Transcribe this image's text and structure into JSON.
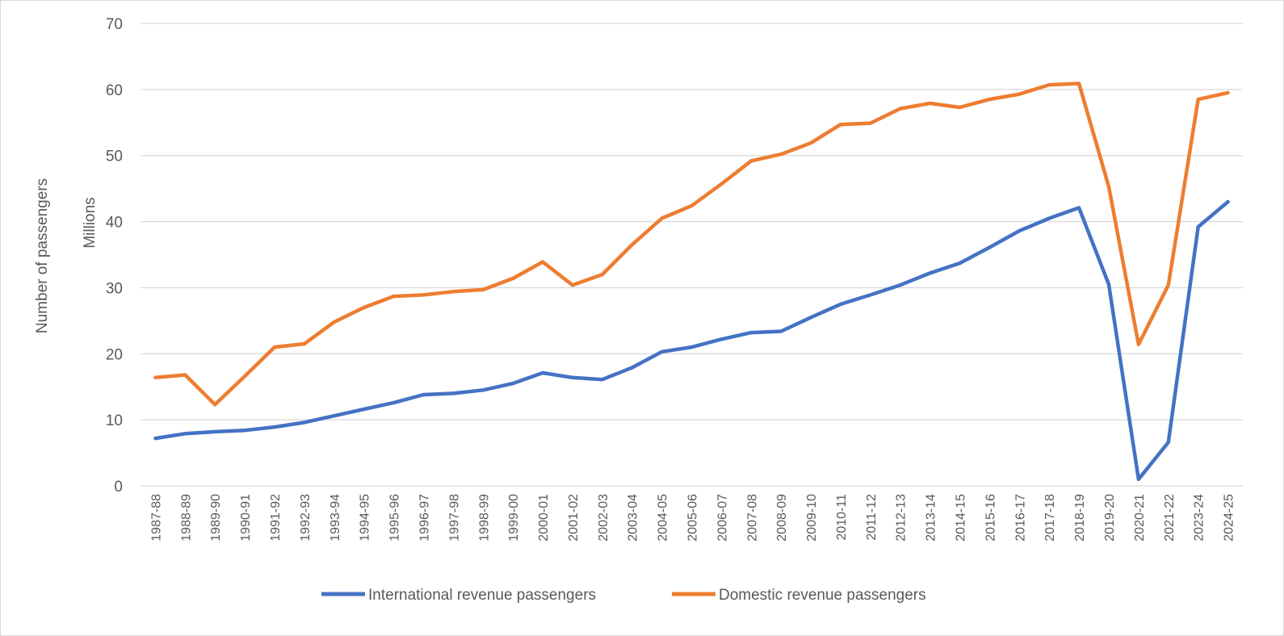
{
  "chart_data": {
    "type": "line",
    "title": "",
    "ylabel": "Number of passengers",
    "yunit_label": "Millions",
    "xlabel": "",
    "ylim": [
      0,
      70
    ],
    "yticks": [
      0,
      10,
      20,
      30,
      40,
      50,
      60,
      70
    ],
    "grid": true,
    "legend_position": "bottom",
    "categories": [
      "1987-88",
      "1988-89",
      "1989-90",
      "1990-91",
      "1991-92",
      "1992-93",
      "1993-94",
      "1994-95",
      "1995-96",
      "1996-97",
      "1997-98",
      "1998-99",
      "1999-00",
      "2000-01",
      "2001-02",
      "2002-03",
      "2003-04",
      "2004-05",
      "2005-06",
      "2006-07",
      "2007-08",
      "2008-09",
      "2009-10",
      "2010-11",
      "2011-12",
      "2012-13",
      "2013-14",
      "2014-15",
      "2015-16",
      "2016-17",
      "2017-18",
      "2018-19",
      "2019-20",
      "2020-21",
      "2021-22",
      "2023-24",
      "2024-25"
    ],
    "series": [
      {
        "name": "International revenue passengers",
        "color": "#4472c4",
        "values": [
          7.2,
          7.9,
          8.2,
          8.4,
          8.9,
          9.6,
          10.6,
          11.6,
          12.6,
          13.8,
          14.0,
          14.5,
          15.5,
          17.1,
          16.4,
          16.1,
          17.9,
          20.3,
          21.0,
          22.2,
          23.2,
          23.4,
          25.5,
          27.5,
          28.9,
          30.4,
          32.2,
          33.7,
          36.1,
          38.6,
          40.5,
          42.1,
          30.5,
          1.0,
          6.6,
          39.2,
          43.0
        ]
      },
      {
        "name": "Domestic revenue passengers",
        "color": "#ed7d31",
        "values": [
          16.4,
          16.8,
          12.3,
          16.6,
          21.0,
          21.5,
          24.8,
          27.0,
          28.7,
          28.9,
          29.4,
          29.7,
          31.4,
          33.9,
          30.4,
          32.0,
          36.5,
          40.5,
          42.4,
          45.7,
          49.2,
          50.2,
          51.9,
          54.7,
          54.9,
          57.1,
          57.9,
          57.3,
          58.5,
          59.3,
          60.7,
          60.9,
          45.3,
          21.4,
          30.4,
          58.5,
          59.5
        ]
      }
    ]
  }
}
